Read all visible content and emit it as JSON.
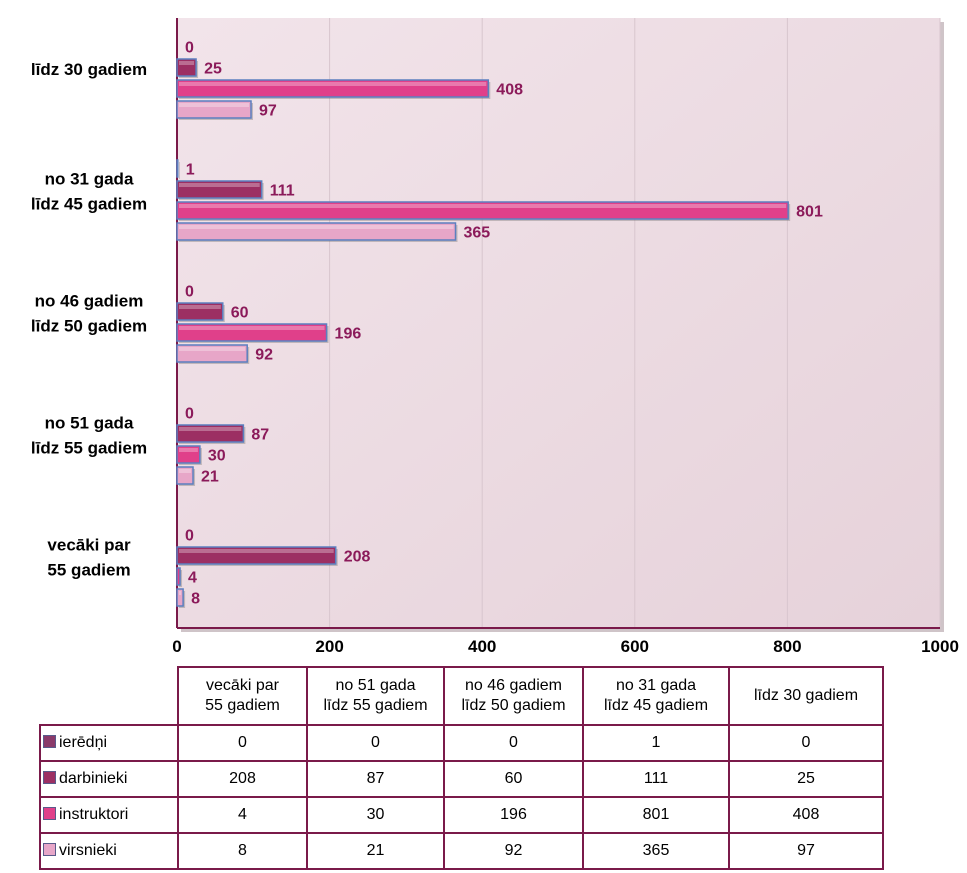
{
  "chart_data": {
    "type": "bar",
    "orientation": "horizontal",
    "categories": [
      [
        "vecāki par",
        "55 gadiem"
      ],
      [
        "no 51 gada",
        "līdz 55 gadiem"
      ],
      [
        "no 46 gadiem",
        "līdz 50 gadiem"
      ],
      [
        "no 31 gada",
        "līdz 45 gadiem"
      ],
      [
        "līdz 30 gadiem"
      ]
    ],
    "series": [
      {
        "name": "ierēdņi",
        "color": "#8a3a6a",
        "values": [
          0,
          0,
          0,
          1,
          0
        ]
      },
      {
        "name": "darbinieki",
        "color": "#9c2f63",
        "values": [
          208,
          87,
          60,
          111,
          25
        ]
      },
      {
        "name": "instruktori",
        "color": "#e0408a",
        "values": [
          4,
          30,
          196,
          801,
          408
        ]
      },
      {
        "name": "virsnieki",
        "color": "#e7a6c8",
        "values": [
          8,
          21,
          92,
          365,
          97
        ]
      }
    ],
    "xlim": [
      0,
      1000
    ],
    "xticks": [
      0,
      200,
      400,
      600,
      800,
      1000
    ],
    "grid": true,
    "plot_background": "#e8d6dd",
    "data_label_color": "#8b1a5a",
    "table_border_color": "#7a1a4a",
    "data_table": true
  }
}
